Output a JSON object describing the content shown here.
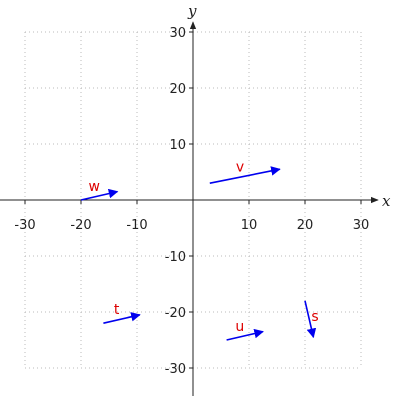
{
  "chart_data": {
    "type": "vector-field",
    "xlabel": "x",
    "ylabel": "y",
    "xlim": [
      -30,
      30
    ],
    "ylim": [
      -30,
      30
    ],
    "xticks": [
      -30,
      -20,
      -10,
      10,
      20,
      30
    ],
    "yticks": [
      -30,
      -20,
      -10,
      10,
      20,
      30
    ],
    "grid": true,
    "grid_style": "dotted",
    "colors": {
      "vector": "#0000ee",
      "label": "#dd0000",
      "grid": "#bbbbbb",
      "axis": "#222222"
    },
    "vectors": [
      {
        "label": "v",
        "start": [
          3,
          3
        ],
        "end": [
          15.5,
          5.5
        ]
      },
      {
        "label": "w",
        "start": [
          -20,
          0
        ],
        "end": [
          -13.5,
          1.5
        ]
      },
      {
        "label": "t",
        "start": [
          -16,
          -22
        ],
        "end": [
          -9.5,
          -20.5
        ]
      },
      {
        "label": "u",
        "start": [
          6,
          -25
        ],
        "end": [
          12.5,
          -23.5
        ]
      },
      {
        "label": "s",
        "start": [
          20,
          -18
        ],
        "end": [
          21.5,
          -24.5
        ]
      }
    ]
  }
}
